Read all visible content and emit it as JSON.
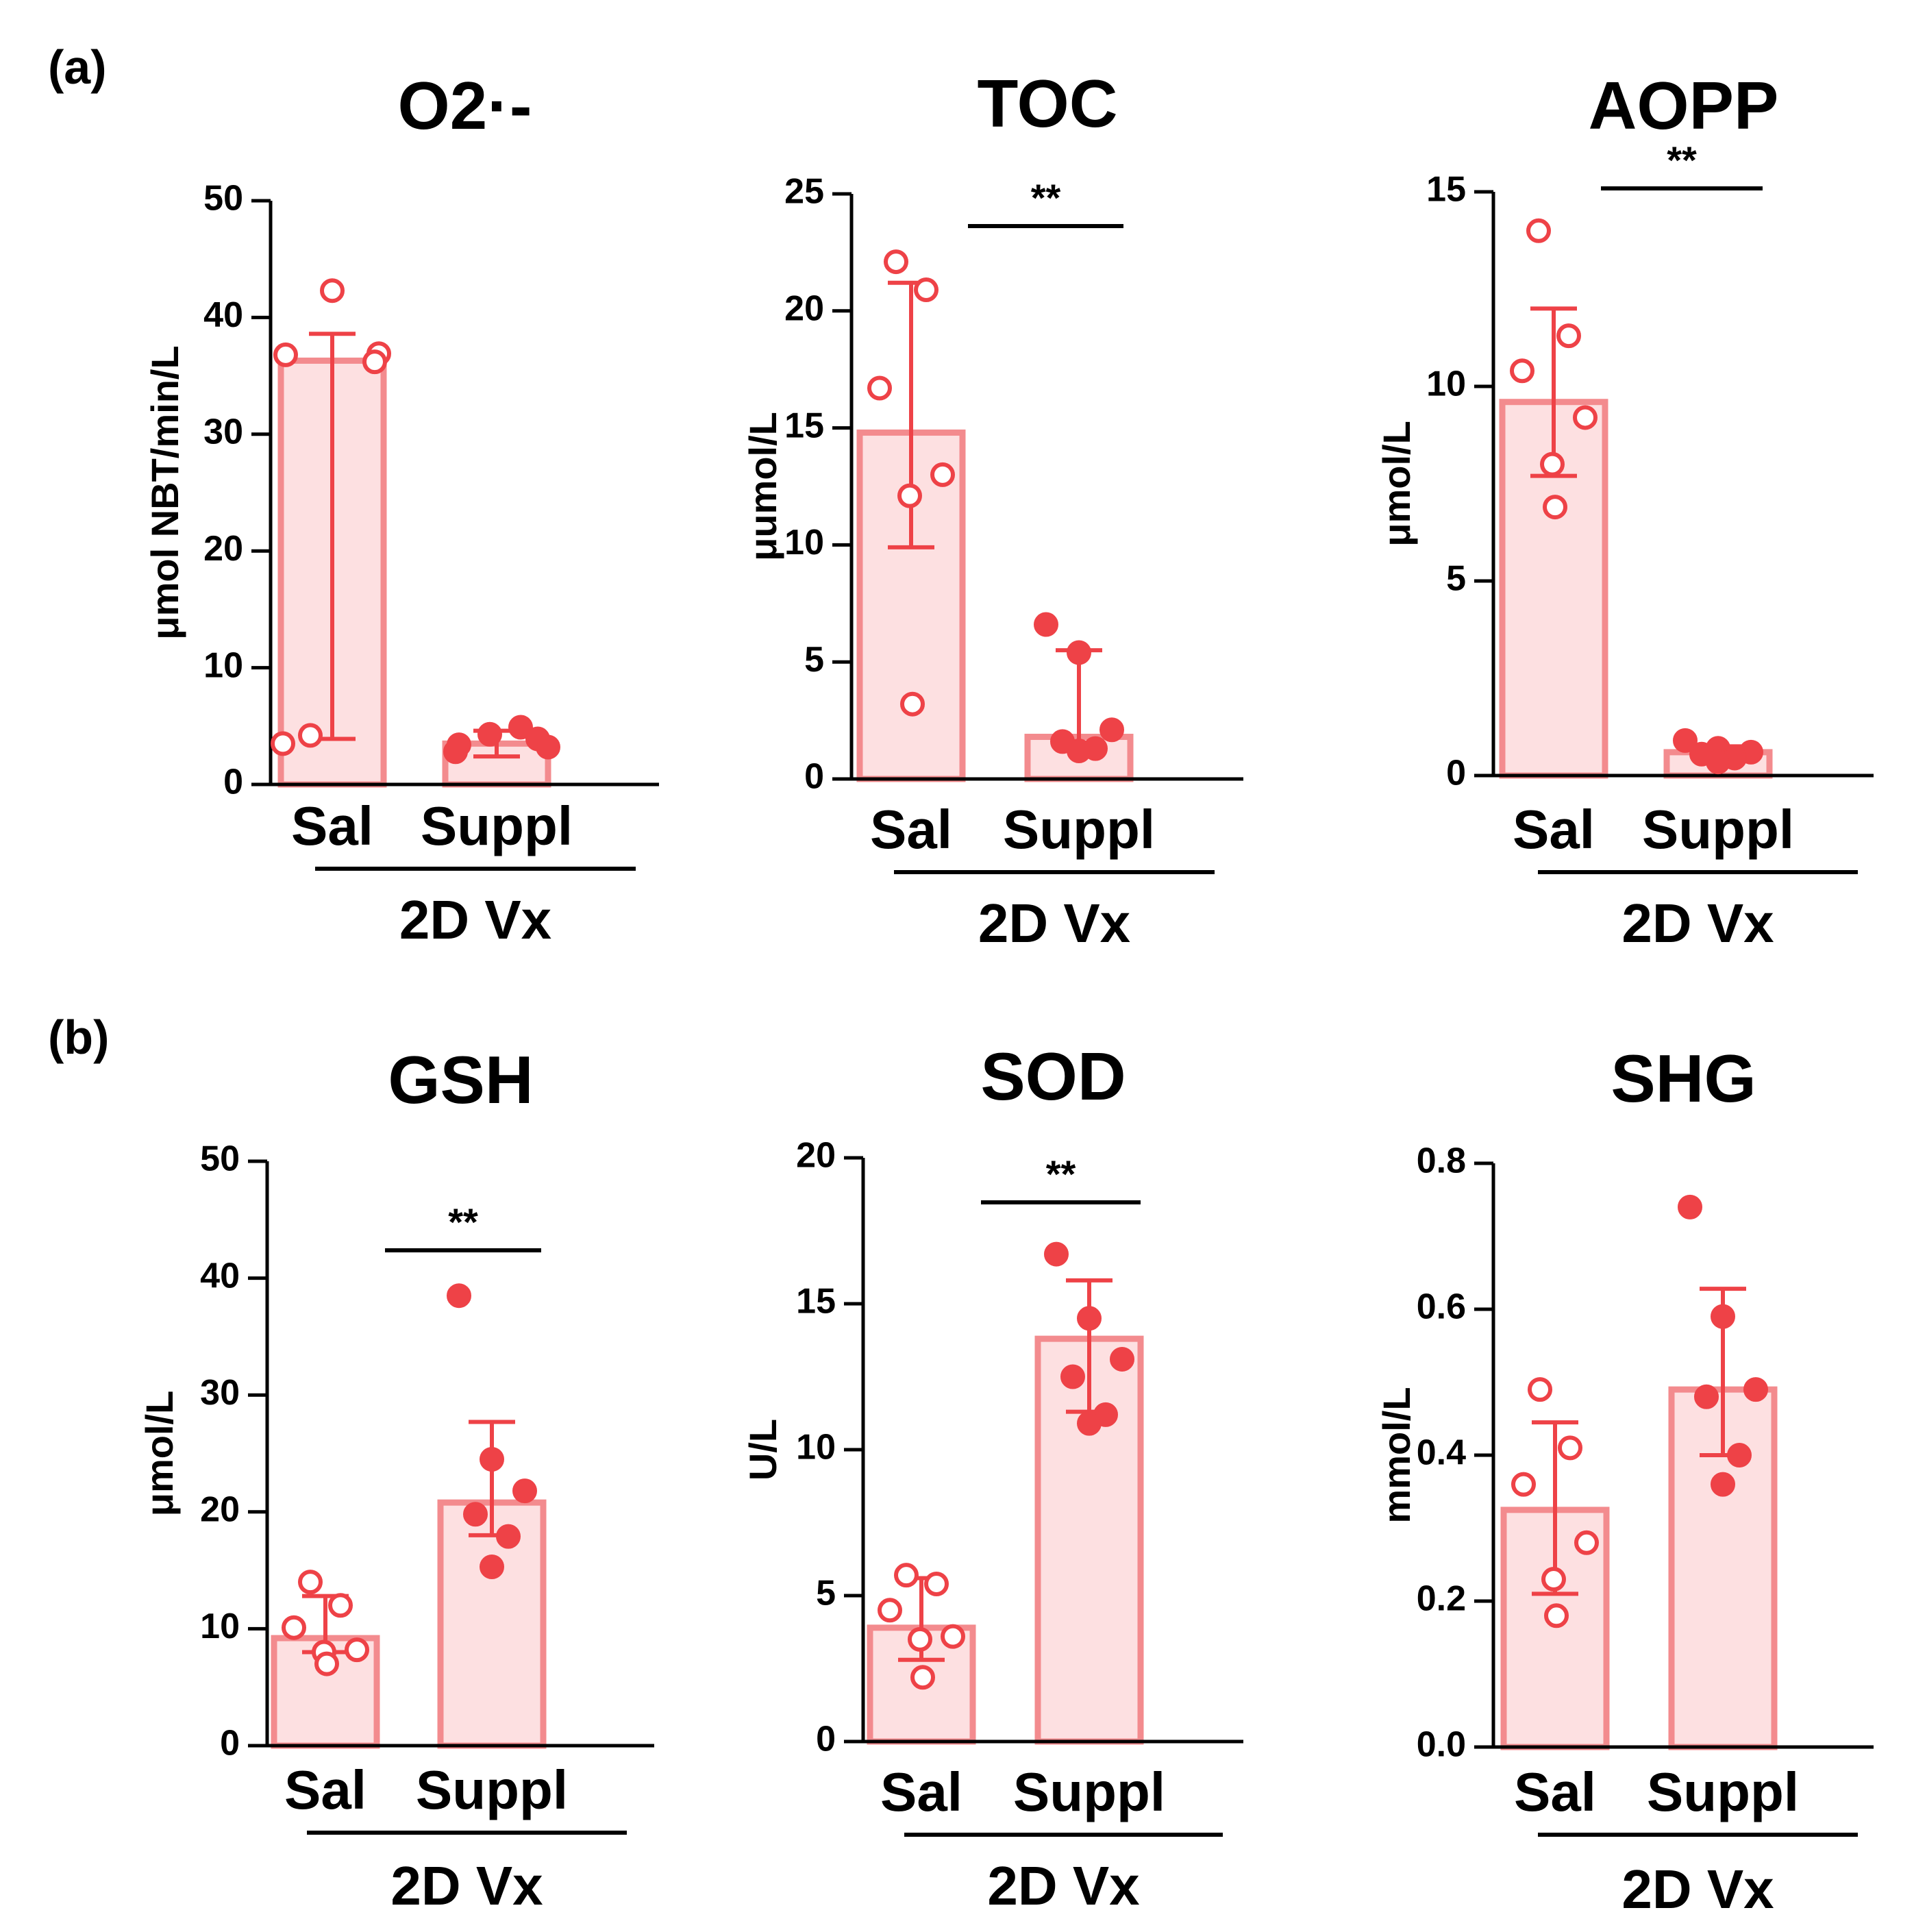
{
  "panel_labels": [
    "(a)",
    "(b)"
  ],
  "colors": {
    "bar_fill": "#fde0e1",
    "bar_stroke": "#f38b8e",
    "point": "#ee4247",
    "error": "#ee4247",
    "axis": "#000000"
  },
  "chart_data": [
    {
      "type": "bar",
      "title": "O2·-",
      "ylabel": "μmol NBT/min/L",
      "ylim": [
        0,
        50
      ],
      "yticks": [
        "0",
        "10",
        "20",
        "30",
        "40",
        "50"
      ],
      "categories": [
        "Sal",
        "Suppl"
      ],
      "group_label": "2D Vx",
      "means": [
        36.3,
        3.5
      ],
      "error_low": [
        3.9,
        2.4
      ],
      "error_high": [
        38.6,
        4.6
      ],
      "points": [
        [
          42.3,
          36.8,
          36.9,
          36.2,
          4.2,
          3.5
        ],
        [
          4.9,
          4.3,
          3.9,
          3.4,
          3.2,
          2.8
        ]
      ],
      "significance": ""
    },
    {
      "type": "bar",
      "title": "TOC",
      "ylabel": "μumol/L",
      "ylim": [
        0,
        25
      ],
      "yticks": [
        "0",
        "5",
        "10",
        "15",
        "20",
        "25"
      ],
      "categories": [
        "Sal",
        "Suppl"
      ],
      "group_label": "2D Vx",
      "means": [
        14.8,
        1.8
      ],
      "error_low": [
        9.9,
        1.3
      ],
      "error_high": [
        21.2,
        5.5
      ],
      "points": [
        [
          22.1,
          20.9,
          16.7,
          13.0,
          12.1,
          3.2
        ],
        [
          6.6,
          5.4,
          2.1,
          1.6,
          1.3,
          1.2
        ]
      ],
      "significance": "**"
    },
    {
      "type": "bar",
      "title": "AOPP",
      "ylabel": "μmol/L",
      "ylim": [
        0,
        15
      ],
      "yticks": [
        "0",
        "5",
        "10",
        "15"
      ],
      "categories": [
        "Sal",
        "Suppl"
      ],
      "group_label": "2D Vx",
      "means": [
        9.6,
        0.6
      ],
      "error_low": [
        7.7,
        0.45
      ],
      "error_high": [
        12.0,
        0.75
      ],
      "points": [
        [
          14.0,
          11.3,
          10.4,
          9.2,
          8.0,
          6.9
        ],
        [
          0.9,
          0.7,
          0.6,
          0.55,
          0.45,
          0.35
        ]
      ],
      "significance": "**"
    },
    {
      "type": "bar",
      "title": "GSH",
      "ylabel": "μmol/L",
      "ylim": [
        0,
        50
      ],
      "yticks": [
        "0",
        "10",
        "20",
        "30",
        "40",
        "50"
      ],
      "categories": [
        "Sal",
        "Suppl"
      ],
      "group_label": "2D Vx",
      "means": [
        9.2,
        20.8
      ],
      "error_low": [
        8.0,
        18.0
      ],
      "error_high": [
        12.8,
        27.7
      ],
      "points": [
        [
          14.0,
          12.0,
          10.1,
          8.2,
          8.0,
          7.0
        ],
        [
          38.5,
          24.5,
          21.8,
          19.8,
          17.9,
          15.3
        ]
      ],
      "significance": "**"
    },
    {
      "type": "bar",
      "title": "SOD",
      "ylabel": "U/L",
      "ylim": [
        0,
        20
      ],
      "yticks": [
        "0",
        "5",
        "10",
        "15",
        "20"
      ],
      "categories": [
        "Sal",
        "Suppl"
      ],
      "group_label": "2D Vx",
      "means": [
        3.9,
        13.8
      ],
      "error_low": [
        2.8,
        11.3
      ],
      "error_high": [
        5.6,
        15.8
      ],
      "points": [
        [
          5.7,
          5.4,
          4.5,
          3.6,
          3.5,
          2.2
        ],
        [
          16.7,
          14.5,
          13.1,
          12.5,
          11.2,
          10.9
        ]
      ],
      "significance": "**"
    },
    {
      "type": "bar",
      "title": "SHG",
      "ylabel": "mmol/L",
      "ylim": [
        0,
        0.8
      ],
      "yticks": [
        "0.0",
        "0.2",
        "0.4",
        "0.6",
        "0.8"
      ],
      "categories": [
        "Sal",
        "Suppl"
      ],
      "group_label": "2D Vx",
      "means": [
        0.325,
        0.49
      ],
      "error_low": [
        0.21,
        0.4
      ],
      "error_high": [
        0.445,
        0.628
      ],
      "points": [
        [
          0.49,
          0.41,
          0.36,
          0.28,
          0.23,
          0.18
        ],
        [
          0.74,
          0.59,
          0.49,
          0.48,
          0.4,
          0.36
        ]
      ],
      "significance": ""
    }
  ]
}
